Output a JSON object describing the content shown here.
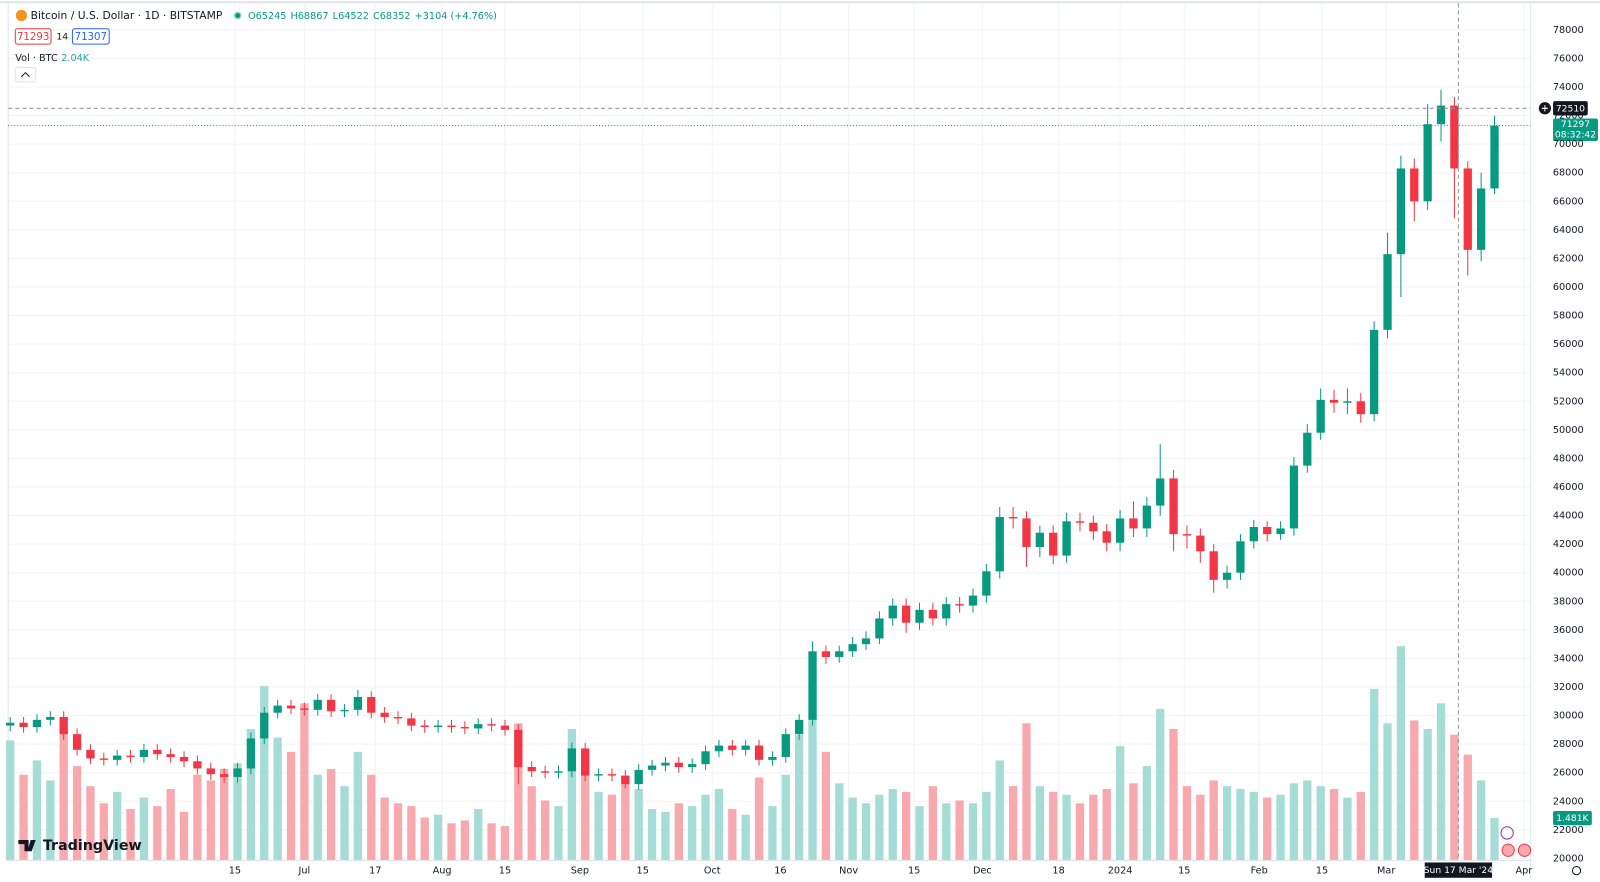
{
  "chart_data": {
    "type": "candlestick",
    "title": "Bitcoin / U.S. Dollar · 1D · BITSTAMP",
    "ohlc_legend": [
      "O65245",
      "H68867",
      "L64522",
      "C68352",
      "+3104 (+4.76%)"
    ],
    "sell_price": "71293",
    "spread": "14",
    "buy_price": "71307",
    "volume_title": "Vol · BTC",
    "volume_value": "2.04K",
    "crosshair": {
      "price": 72510,
      "x": 108.3,
      "date_label": "Sun 17 Mar '24"
    },
    "last_price": {
      "price": 71297,
      "countdown": "08:32:42"
    },
    "last_volume_label": "1.481K",
    "logo": "TradingView",
    "colors": {
      "up": "#089981",
      "down": "#f23645",
      "volume_up": "#a6dcd6",
      "volume_down": "#f7a9ad"
    },
    "grid": true,
    "xlim": [
      0,
      113.7
    ],
    "xticks": [
      {
        "value": 16.8,
        "label": "15"
      },
      {
        "value": 22,
        "label": "Jul"
      },
      {
        "value": 27.3,
        "label": "17"
      },
      {
        "value": 32.3,
        "label": "Aug"
      },
      {
        "value": 37,
        "label": "15"
      },
      {
        "value": 42.6,
        "label": "Sep"
      },
      {
        "value": 47.3,
        "label": "15"
      },
      {
        "value": 52.5,
        "label": "Oct"
      },
      {
        "value": 57.6,
        "label": "16"
      },
      {
        "value": 62.7,
        "label": "Nov"
      },
      {
        "value": 67.6,
        "label": "15"
      },
      {
        "value": 72.7,
        "label": "Dec"
      },
      {
        "value": 78.4,
        "label": "18"
      },
      {
        "value": 83,
        "label": "2024"
      },
      {
        "value": 87.8,
        "label": "15"
      },
      {
        "value": 93.4,
        "label": "Feb"
      },
      {
        "value": 98.1,
        "label": "15"
      },
      {
        "value": 102.9,
        "label": "Mar"
      },
      {
        "value": 113.2,
        "label": "Apr"
      }
    ],
    "ylim": [
      19860,
      79790
    ],
    "yticks": [
      20000,
      22000,
      24000,
      26000,
      28000,
      30000,
      32000,
      34000,
      36000,
      38000,
      40000,
      42000,
      44000,
      46000,
      48000,
      50000,
      52000,
      54000,
      56000,
      58000,
      60000,
      62000,
      64000,
      66000,
      68000,
      70000,
      72000,
      74000,
      76000,
      78000
    ],
    "volume_lim": [
      0,
      29964
    ],
    "open": [
      29300,
      29500,
      29200,
      29700,
      29900,
      28700,
      27600,
      27000,
      26900,
      27200,
      27100,
      27600,
      27300,
      27100,
      26800,
      26300,
      25900,
      25700,
      26300,
      28400,
      30200,
      30700,
      30500,
      30400,
      31100,
      30300,
      30400,
      31300,
      30200,
      29900,
      29800,
      29300,
      29200,
      29300,
      29200,
      29100,
      29400,
      29300,
      29000,
      26400,
      26100,
      26000,
      26100,
      27700,
      25800,
      25900,
      25800,
      25200,
      26200,
      26500,
      26700,
      26400,
      26600,
      27500,
      27900,
      27600,
      27900,
      26900,
      27100,
      28700,
      29700,
      34500,
      34100,
      34500,
      35000,
      35400,
      36800,
      37700,
      36500,
      37400,
      36800,
      37800,
      37700,
      38400,
      40100,
      43900,
      43800,
      41800,
      42800,
      41200,
      43600,
      43500,
      42900,
      42100,
      43800,
      43100,
      44700,
      46600,
      42700,
      42600,
      41500,
      39500,
      40000,
      42200,
      43200,
      42700,
      43100,
      47500,
      49800,
      52100,
      51900,
      52000,
      51100,
      57000,
      62300,
      68300,
      66000,
      71400,
      72700,
      68300,
      62600,
      66900
    ],
    "high": [
      29900,
      29900,
      30100,
      30300,
      30300,
      29100,
      28000,
      27400,
      27600,
      27600,
      28000,
      28000,
      27700,
      27500,
      27200,
      26700,
      26300,
      26700,
      28800,
      30600,
      31100,
      31100,
      30900,
      31500,
      31500,
      30800,
      31800,
      31700,
      30600,
      30300,
      30200,
      29700,
      29700,
      29700,
      29600,
      29800,
      29800,
      29700,
      29400,
      26800,
      26500,
      26500,
      28100,
      28100,
      26300,
      26300,
      26200,
      26600,
      26900,
      27100,
      27100,
      27000,
      27900,
      28300,
      28300,
      28300,
      28300,
      27500,
      29100,
      30100,
      35200,
      34900,
      34900,
      35500,
      35900,
      37300,
      38200,
      38200,
      37900,
      37900,
      38300,
      38300,
      38900,
      40600,
      44600,
      44600,
      44300,
      43300,
      43300,
      44200,
      44200,
      44000,
      43400,
      44400,
      45000,
      45300,
      49000,
      47200,
      43300,
      43100,
      42000,
      40500,
      42700,
      43700,
      43600,
      43600,
      48100,
      50400,
      52900,
      52800,
      52900,
      52600,
      57600,
      63800,
      69200,
      69000,
      72800,
      73800,
      73300,
      68800,
      68000,
      72000
    ],
    "low": [
      28900,
      28800,
      28800,
      29300,
      28300,
      27200,
      26600,
      26500,
      26500,
      26700,
      26700,
      26900,
      26700,
      26400,
      25900,
      25500,
      25300,
      25300,
      25900,
      28000,
      29800,
      30100,
      30000,
      30000,
      29900,
      29900,
      30000,
      29800,
      29500,
      29400,
      28900,
      28800,
      28800,
      28800,
      28700,
      28700,
      28900,
      28600,
      25200,
      25700,
      25600,
      25600,
      25700,
      25400,
      25400,
      25400,
      24900,
      24800,
      25800,
      26100,
      26000,
      26000,
      26200,
      27100,
      27200,
      27200,
      26500,
      26500,
      26700,
      28300,
      29300,
      33600,
      33700,
      34100,
      34600,
      35000,
      36300,
      35800,
      36000,
      36300,
      36300,
      37200,
      37200,
      37900,
      39600,
      43100,
      40400,
      41100,
      40600,
      40700,
      42900,
      42300,
      41500,
      41500,
      42500,
      42500,
      44000,
      41500,
      41700,
      40700,
      38600,
      38900,
      39500,
      41700,
      42200,
      42300,
      42600,
      47000,
      49300,
      51200,
      51100,
      50500,
      50600,
      56400,
      59300,
      64600,
      65400,
      70200,
      64800,
      60800,
      61800,
      66500
    ],
    "close": [
      29500,
      29200,
      29700,
      29900,
      28700,
      27600,
      27000,
      26900,
      27200,
      27100,
      27600,
      27300,
      27100,
      26800,
      26300,
      25900,
      25700,
      26300,
      28400,
      30200,
      30700,
      30500,
      30400,
      31100,
      30300,
      30400,
      31300,
      30200,
      29900,
      29800,
      29300,
      29200,
      29300,
      29200,
      29100,
      29400,
      29300,
      29000,
      26400,
      26100,
      26000,
      26100,
      27700,
      25800,
      25900,
      25800,
      25200,
      26200,
      26500,
      26700,
      26400,
      26600,
      27500,
      27900,
      27600,
      27900,
      26900,
      27100,
      28700,
      29700,
      34500,
      34100,
      34500,
      35000,
      35400,
      36800,
      37700,
      36500,
      37400,
      36800,
      37800,
      37700,
      38400,
      40100,
      43900,
      43800,
      41800,
      42800,
      41200,
      43600,
      43500,
      42900,
      42100,
      43800,
      43100,
      44700,
      46600,
      42700,
      42600,
      41500,
      39500,
      40000,
      42200,
      43200,
      42700,
      43100,
      47500,
      49800,
      52100,
      51900,
      52000,
      51100,
      57000,
      62300,
      68300,
      66000,
      71400,
      72700,
      68300,
      62600,
      66900,
      71297
    ],
    "volume": [
      4200,
      3000,
      3500,
      2800,
      4800,
      3300,
      2600,
      2000,
      2400,
      1800,
      2200,
      1900,
      2500,
      1700,
      3000,
      2800,
      3200,
      3400,
      4600,
      6100,
      4300,
      3800,
      5500,
      3000,
      3200,
      2600,
      3800,
      3000,
      2200,
      2000,
      1900,
      1500,
      1600,
      1300,
      1400,
      1800,
      1300,
      1200,
      4800,
      2600,
      2100,
      1900,
      4600,
      3500,
      2400,
      2300,
      2800,
      2500,
      1800,
      1700,
      2000,
      1900,
      2300,
      2500,
      1800,
      1600,
      2900,
      1900,
      3000,
      4400,
      6100,
      3800,
      2700,
      2200,
      2000,
      2300,
      2500,
      2400,
      1900,
      2600,
      2000,
      2100,
      2000,
      2400,
      3500,
      2600,
      4800,
      2600,
      2400,
      2300,
      2000,
      2300,
      2500,
      4000,
      2700,
      3300,
      5300,
      4600,
      2600,
      2300,
      2800,
      2600,
      2500,
      2400,
      2200,
      2300,
      2700,
      2800,
      2600,
      2500,
      2200,
      2400,
      6000,
      4800,
      7500,
      4900,
      4600,
      5500,
      4400,
      3700,
      2800,
      1481
    ]
  }
}
